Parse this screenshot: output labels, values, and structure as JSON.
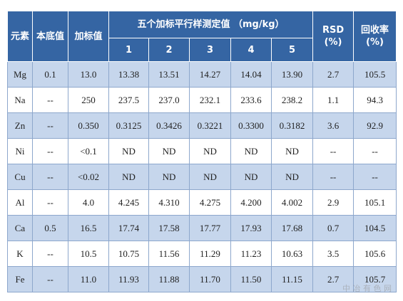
{
  "table": {
    "header": {
      "element": "元素",
      "background": "本底值",
      "spiked": "加标值",
      "group": "五个加标平行样测定值 （mg/kg）",
      "replicates": [
        "1",
        "2",
        "3",
        "4",
        "5"
      ],
      "rsd": "RSD (%)",
      "recovery": "回收率 (%)"
    },
    "rows": [
      [
        "Mg",
        "0.1",
        "13.0",
        "13.38",
        "13.51",
        "14.27",
        "14.04",
        "13.90",
        "2.7",
        "105.5"
      ],
      [
        "Na",
        "--",
        "250",
        "237.5",
        "237.0",
        "232.1",
        "233.6",
        "238.2",
        "1.1",
        "94.3"
      ],
      [
        "Zn",
        "--",
        "0.350",
        "0.3125",
        "0.3426",
        "0.3221",
        "0.3300",
        "0.3182",
        "3.6",
        "92.9"
      ],
      [
        "Ni",
        "--",
        "<0.1",
        "ND",
        "ND",
        "ND",
        "ND",
        "ND",
        "--",
        "--"
      ],
      [
        "Cu",
        "--",
        "<0.02",
        "ND",
        "ND",
        "ND",
        "ND",
        "ND",
        "--",
        "--"
      ],
      [
        "Al",
        "--",
        "4.0",
        "4.245",
        "4.310",
        "4.275",
        "4.200",
        "4.002",
        "2.9",
        "105.1"
      ],
      [
        "Ca",
        "0.5",
        "16.5",
        "17.74",
        "17.58",
        "17.77",
        "17.93",
        "17.68",
        "0.7",
        "104.5"
      ],
      [
        "K",
        "--",
        "10.5",
        "10.75",
        "11.56",
        "11.29",
        "11.23",
        "10.63",
        "3.5",
        "105.6"
      ],
      [
        "Fe",
        "--",
        "11.0",
        "11.93",
        "11.88",
        "11.70",
        "11.50",
        "11.15",
        "2.7",
        "105.7"
      ]
    ]
  },
  "watermark": "中 冶 有 色 网"
}
